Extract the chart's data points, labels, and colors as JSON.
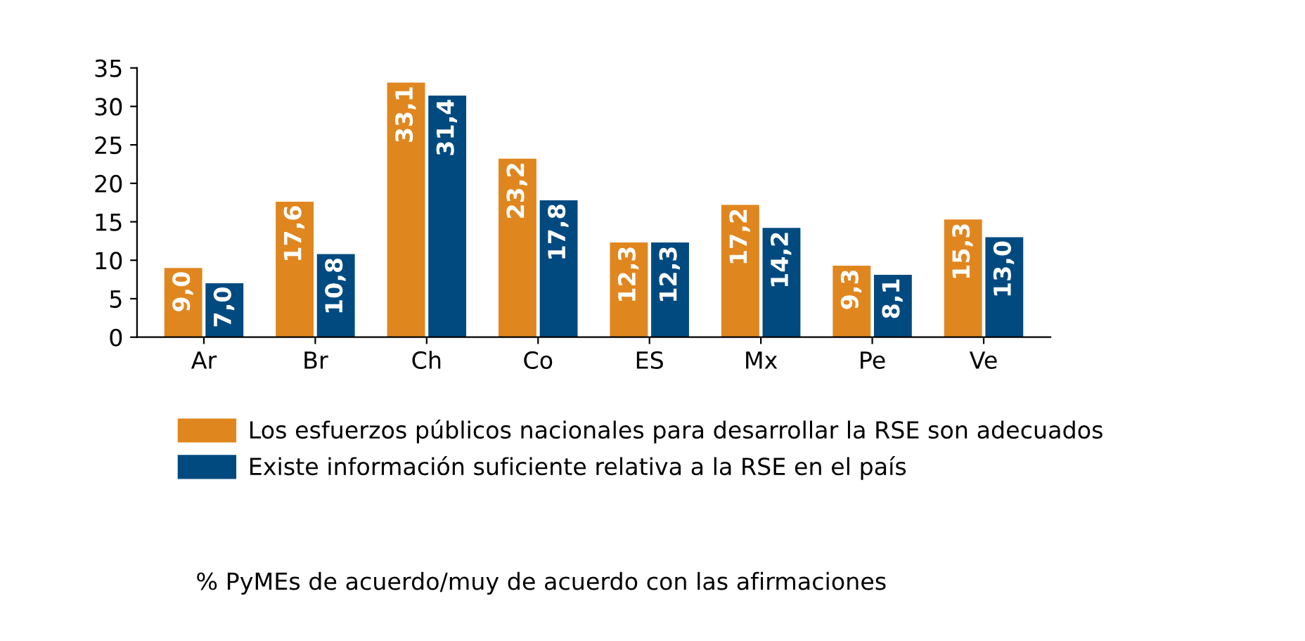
{
  "chart_data": {
    "type": "bar",
    "categories": [
      "Ar",
      "Br",
      "Ch",
      "Co",
      "ES",
      "Mx",
      "Pe",
      "Ve"
    ],
    "series": [
      {
        "name": "Los esfuerzos públicos nacionales para desarrollar la RSE son adecuados",
        "color": "#e0861f",
        "values": [
          9.0,
          17.6,
          33.1,
          23.2,
          12.3,
          17.2,
          9.3,
          15.3
        ],
        "value_labels": [
          "9,0",
          "17,6",
          "33,1",
          "23,2",
          "12,3",
          "17,2",
          "9,3",
          "15,3"
        ]
      },
      {
        "name": "Existe información suficiente relativa a la RSE en el país",
        "color": "#004a80",
        "values": [
          7.0,
          10.8,
          31.4,
          17.8,
          12.3,
          14.2,
          8.1,
          13.0
        ],
        "value_labels": [
          "7,0",
          "10,8",
          "31,4",
          "17,8",
          "12,3",
          "14,2",
          "8,1",
          "13,0"
        ]
      }
    ],
    "ylim": [
      0,
      35
    ],
    "yticks": [
      0,
      5,
      10,
      15,
      20,
      25,
      30,
      35
    ],
    "grid": false,
    "legend": "bottom",
    "annotations": [
      "% PyMEs de acuerdo/muy de acuerdo con las afirmaciones"
    ]
  }
}
